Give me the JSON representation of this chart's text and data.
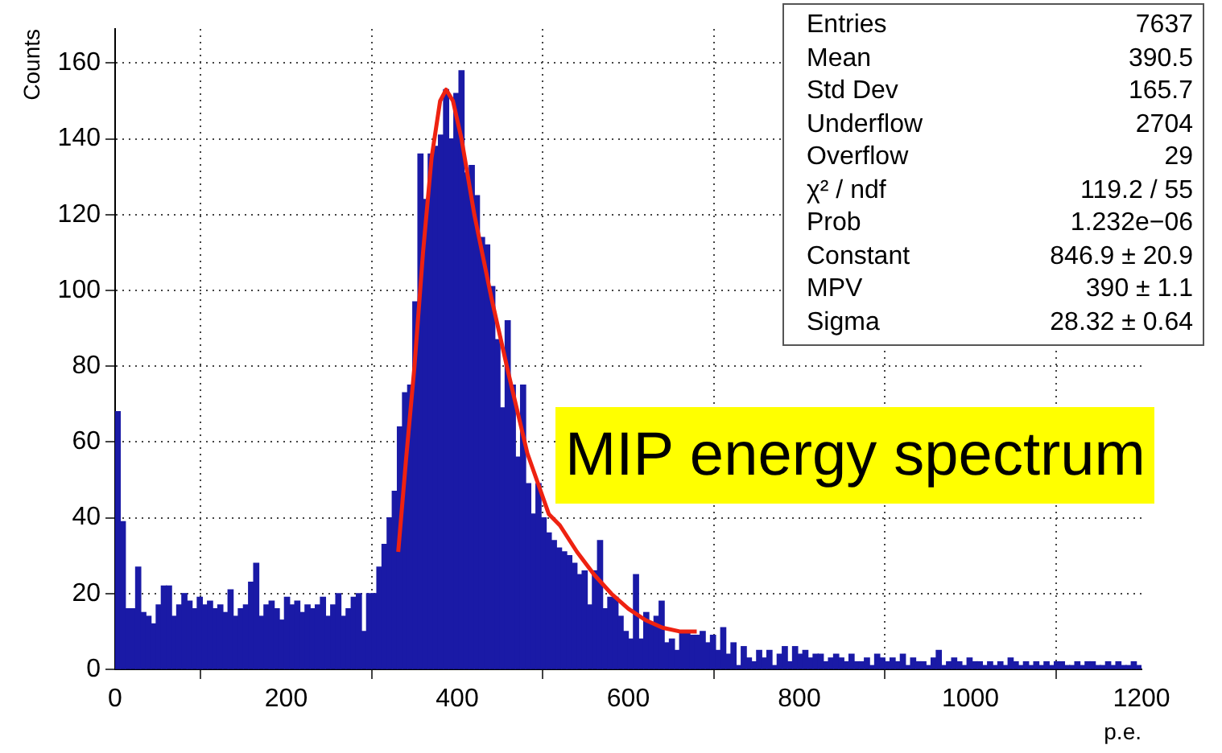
{
  "chart_data": {
    "type": "histogram",
    "title": "MIP energy spectrum",
    "xlabel": "p.e.",
    "ylabel": "Counts",
    "xlim": [
      0,
      1200
    ],
    "xticks": [
      0,
      200,
      400,
      600,
      800,
      1000,
      1200
    ],
    "ylim": [
      0,
      169
    ],
    "yticks": [
      0,
      20,
      40,
      60,
      80,
      100,
      120,
      140,
      160
    ],
    "grid": true,
    "legend": false,
    "annotations": [
      "Entries  7637",
      "Mean  390.5",
      "Std Dev  165.7",
      "Underflow  2704",
      "Overflow  29",
      "χ² / ndf  119.2 / 55",
      "Prob  1.232e−06",
      "Constant  846.9 ± 20.9",
      "MPV  390 ± 1.1",
      "Sigma  28.32 ± 0.64"
    ],
    "series": [
      {
        "type": "histogram",
        "color": "#1a1aa6",
        "bins": [
          0,
          6,
          12,
          18,
          24,
          30,
          36,
          42,
          48,
          54,
          60,
          66,
          72,
          78,
          84,
          90,
          96,
          102,
          108,
          114,
          120,
          126,
          132,
          138,
          144,
          150,
          156,
          162,
          168,
          174,
          180,
          186,
          192,
          198,
          204,
          210,
          216,
          222,
          228,
          234,
          240,
          246,
          252,
          258,
          264,
          270,
          276,
          282,
          288,
          294,
          300,
          306,
          312,
          318,
          324,
          330,
          336,
          342,
          348,
          354,
          360,
          366,
          372,
          378,
          384,
          390,
          396,
          402,
          408,
          414,
          420,
          426,
          432,
          438,
          444,
          450,
          456,
          462,
          468,
          474,
          480,
          486,
          492,
          498,
          504,
          510,
          516,
          522,
          528,
          534,
          540,
          546,
          552,
          558,
          564,
          570,
          576,
          582,
          588,
          594,
          600,
          606,
          612,
          618,
          624,
          630,
          636,
          642,
          648,
          654,
          660,
          666,
          672,
          678,
          684,
          690,
          696,
          702,
          708,
          714,
          720,
          726,
          732,
          738,
          744,
          750,
          756,
          762,
          768,
          774,
          780,
          786,
          792,
          798,
          804,
          810,
          816,
          822,
          828,
          834,
          840,
          846,
          852,
          858,
          864,
          870,
          876,
          882,
          888,
          894,
          900,
          906,
          912,
          918,
          924,
          930,
          936,
          942,
          948,
          954,
          960,
          966,
          972,
          978,
          984,
          990,
          996,
          1002,
          1008,
          1014,
          1020,
          1026,
          1032,
          1038,
          1044,
          1050,
          1056,
          1062,
          1068,
          1074,
          1080,
          1086,
          1092,
          1098,
          1104,
          1110,
          1116,
          1122,
          1128,
          1134,
          1140,
          1146,
          1152,
          1158,
          1164,
          1170,
          1176,
          1182,
          1188,
          1194,
          1200
        ],
        "values": [
          68,
          39,
          16,
          16,
          27,
          15,
          14,
          12,
          17,
          22,
          22,
          14,
          17,
          20,
          18,
          16,
          19,
          17,
          18,
          16,
          17,
          15,
          21,
          14,
          16,
          17,
          23,
          28,
          14,
          17,
          18,
          16,
          13,
          19,
          17,
          18,
          15,
          17,
          16,
          17,
          19,
          14,
          17,
          20,
          14,
          16,
          19,
          20,
          10,
          20,
          20,
          27,
          33,
          40,
          47,
          64,
          73,
          75,
          97,
          136,
          124,
          136,
          138,
          141,
          153,
          140,
          152,
          158,
          131,
          133,
          125,
          114,
          112,
          101,
          87,
          69,
          92,
          75,
          56,
          75,
          49,
          41,
          49,
          40,
          36,
          34,
          32,
          31,
          30,
          28,
          25,
          26,
          17,
          26,
          34,
          16,
          19,
          19,
          14,
          10,
          8,
          25,
          8,
          15,
          12,
          14,
          18,
          7,
          8,
          5,
          10,
          10,
          9,
          9,
          10,
          7,
          9,
          5,
          11,
          4,
          7,
          1,
          6,
          3,
          2,
          5,
          3,
          5,
          1,
          4,
          6,
          2,
          6,
          4,
          5,
          3,
          4,
          4,
          2,
          3,
          4,
          3,
          2,
          4,
          2,
          2,
          3,
          1,
          4,
          3,
          2,
          3,
          2,
          4,
          1,
          3,
          2,
          2,
          1,
          3,
          5,
          1,
          2,
          3,
          2,
          1,
          3,
          2,
          2,
          1,
          2,
          1,
          2,
          1,
          3,
          2,
          1,
          2,
          1,
          2,
          1,
          2,
          1,
          2,
          2,
          1,
          1,
          2,
          1,
          2,
          2,
          1,
          1,
          2,
          1,
          2,
          1,
          1,
          2,
          1
        ]
      },
      {
        "type": "line",
        "color": "#ee2211",
        "marker": "none",
        "line_style": "solid",
        "x": [
          331,
          340,
          350,
          360,
          370,
          380,
          387,
          395,
          405,
          420,
          440,
          460,
          482,
          507,
          520,
          540,
          560,
          580,
          600,
          620,
          640,
          660,
          680
        ],
        "values": [
          31,
          55,
          80,
          110,
          135,
          150,
          153,
          150,
          140,
          120,
          98,
          78,
          57,
          41,
          38,
          31,
          25,
          20,
          16,
          13,
          11,
          10,
          10
        ]
      }
    ]
  }
}
